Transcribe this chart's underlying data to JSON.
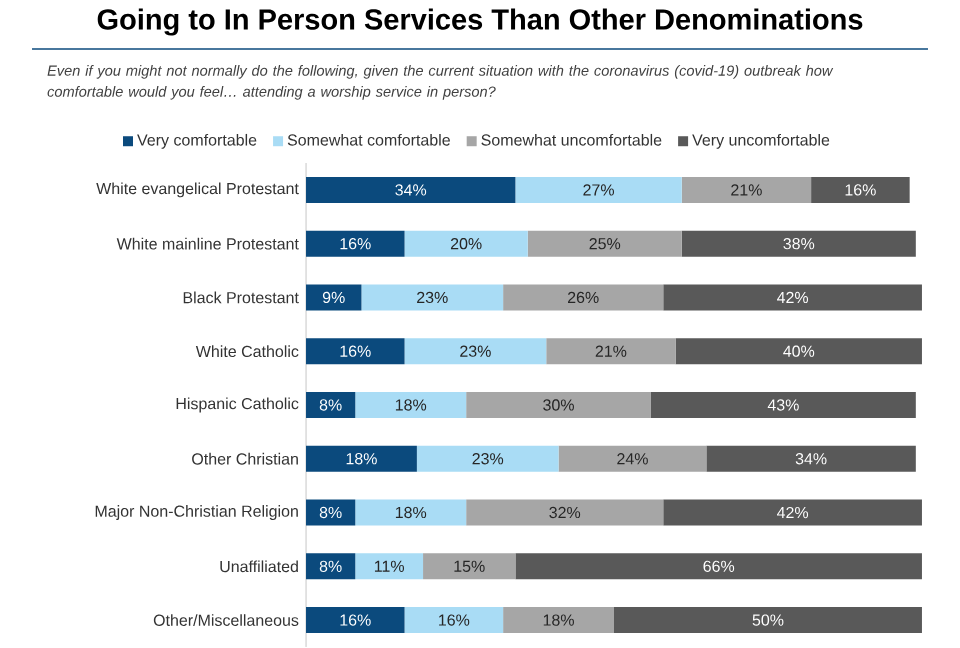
{
  "chart_data": {
    "type": "bar",
    "orientation": "horizontal",
    "stacked": true,
    "title": "Going to In Person Services Than Other Denominations",
    "subtitle": "Even if you might not normally do the following, given the current situation with the coronavirus (covid-19) outbreak how comfortable would you feel… attending a worship service in person?",
    "categories": [
      "White evangelical Protestant",
      "White mainline Protestant",
      "Black Protestant",
      "White Catholic",
      "Hispanic Catholic",
      "Other Christian",
      "Major Non-Christian Religion",
      "Unaffiliated",
      "Other/Miscellaneous"
    ],
    "series": [
      {
        "name": "Very comfortable",
        "color": "#0b4a7d",
        "values": [
          34,
          16,
          9,
          16,
          8,
          18,
          8,
          8,
          16
        ],
        "value_labels": [
          "34%",
          "16%",
          "9%",
          "16%",
          "8%",
          "18%",
          "8%",
          "8%",
          "16%"
        ]
      },
      {
        "name": "Somewhat comfortable",
        "color": "#a9dcf5",
        "values": [
          27,
          20,
          23,
          23,
          18,
          23,
          18,
          11,
          16
        ],
        "value_labels": [
          "27%",
          "20%",
          "23%",
          "23%",
          "18%",
          "23%",
          "18%",
          "11%",
          "16%"
        ]
      },
      {
        "name": "Somewhat uncomfortable",
        "color": "#a6a6a6",
        "values": [
          21,
          25,
          26,
          21,
          30,
          24,
          32,
          15,
          18
        ],
        "value_labels": [
          "21%",
          "25%",
          "26%",
          "21%",
          "30%",
          "24%",
          "32%",
          "15%",
          "18%"
        ]
      },
      {
        "name": "Very uncomfortable",
        "color": "#595959",
        "values": [
          16,
          38,
          42,
          40,
          43,
          34,
          42,
          66,
          50
        ],
        "value_labels": [
          "16%",
          "38%",
          "42%",
          "40%",
          "43%",
          "34%",
          "42%",
          "66%",
          "50%"
        ]
      }
    ],
    "xlim": [
      0,
      100
    ],
    "tick_labels": "y",
    "legend": "top"
  }
}
